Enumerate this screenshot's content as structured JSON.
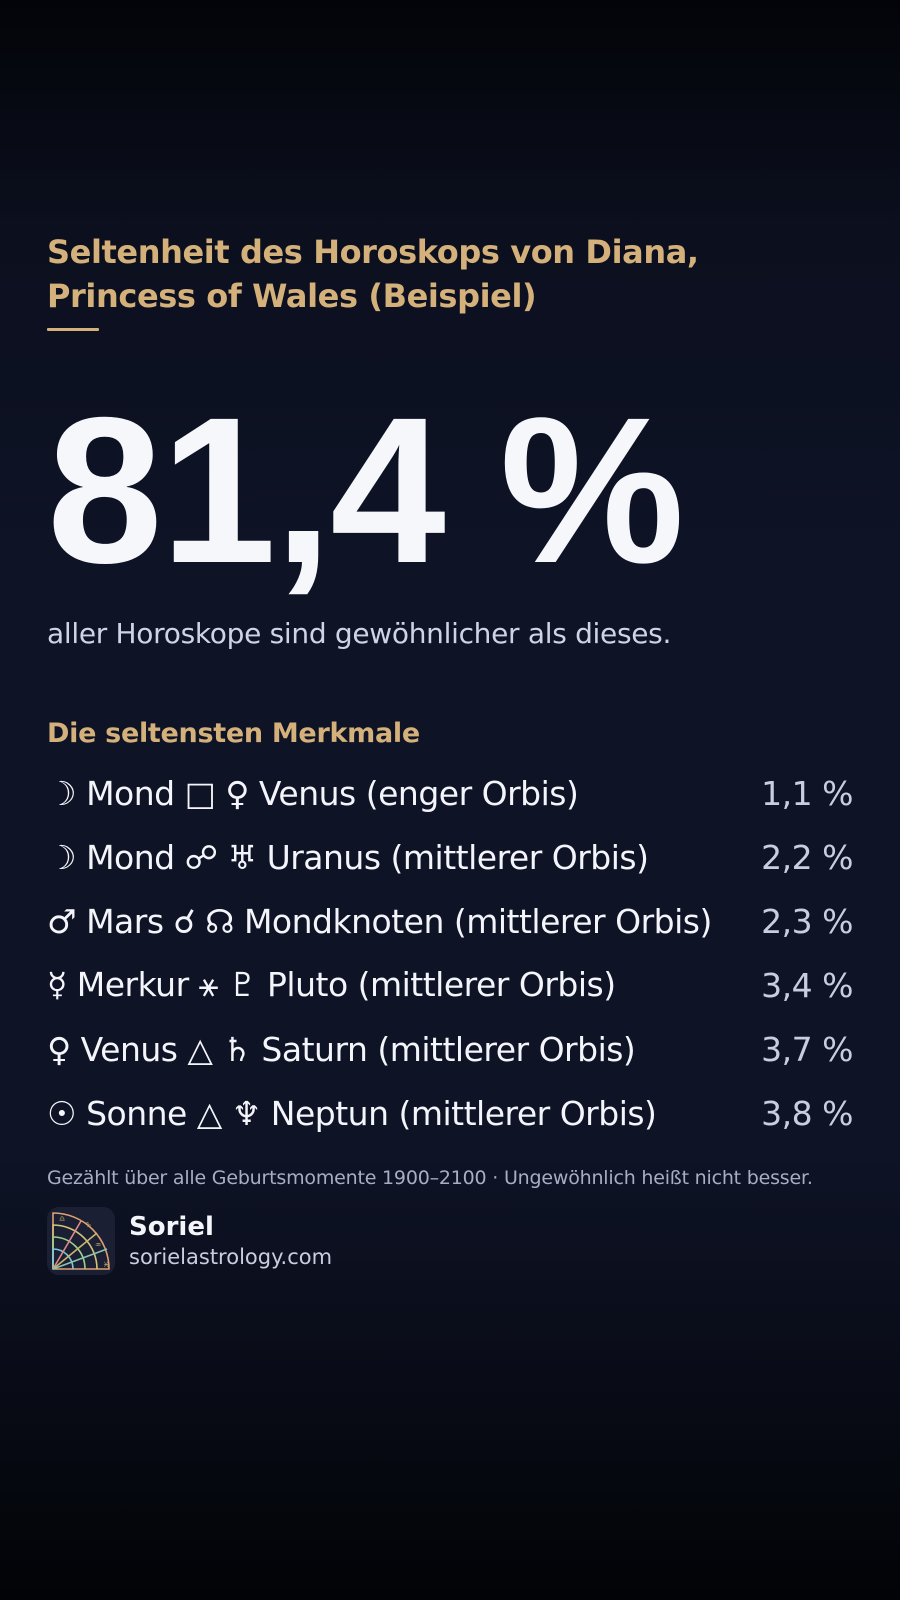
{
  "header": {
    "title": "Seltenheit des Horoskops von Diana, Princess of Wales (Beispiel)"
  },
  "hero": {
    "percentage": "81,4 %",
    "subline": "aller Horoskope sind gewöhnlicher als dieses."
  },
  "traits_section": {
    "title": "Die seltensten Merkmale",
    "items": [
      {
        "label": "☽ Mond □ ♀ Venus (enger Orbis)",
        "value": "1,1 %"
      },
      {
        "label": "☽ Mond ☍ ♅ Uranus (mittlerer Orbis)",
        "value": "2,2 %"
      },
      {
        "label": "♂ Mars ☌ ☊ Mondknoten (mittlerer Orbis)",
        "value": "2,3 %"
      },
      {
        "label": "☿ Merkur ⚹ ♇ Pluto (mittlerer Orbis)",
        "value": "3,4 %"
      },
      {
        "label": "♀ Venus △ ♄ Saturn (mittlerer Orbis)",
        "value": "3,7 %"
      },
      {
        "label": "☉ Sonne △ ♆ Neptun (mittlerer Orbis)",
        "value": "3,8 %"
      }
    ]
  },
  "footnote": "Gezählt über alle Geburtsmomente 1900–2100 · Ungewöhnlich heißt nicht besser.",
  "brand": {
    "name": "Soriel",
    "url": "sorielastrology.com",
    "logo_icon": "zodiac-wheel-icon"
  },
  "colors": {
    "accent": "#d4b07a",
    "background": "#0e1326",
    "text": "#f4f5fa"
  }
}
